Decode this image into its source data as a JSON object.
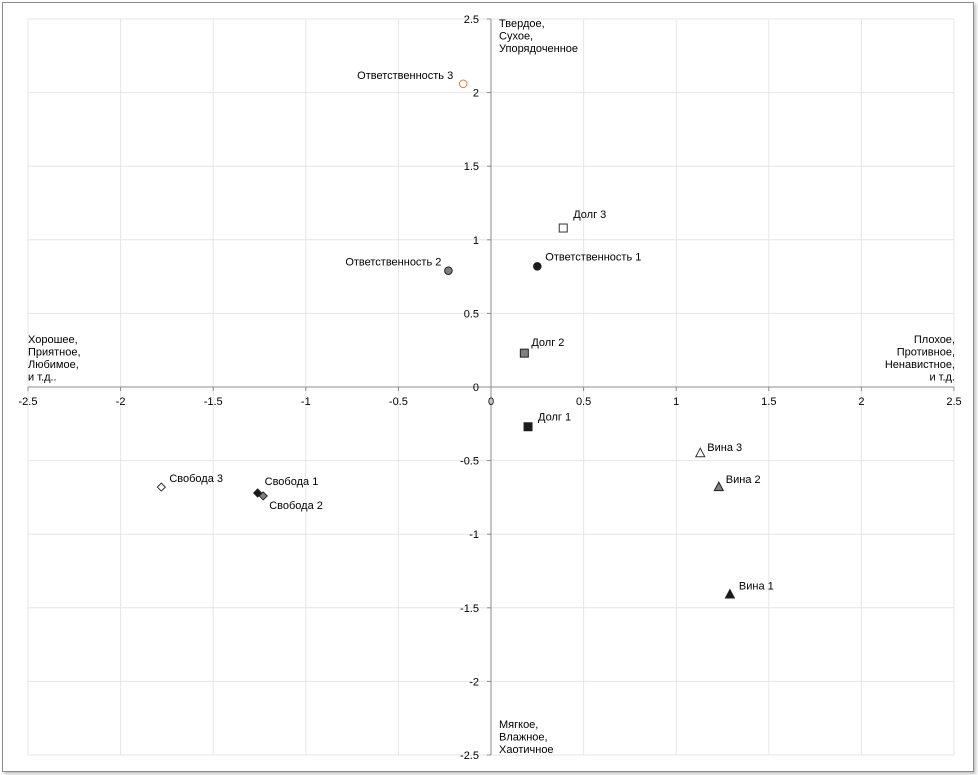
{
  "chart_data": {
    "type": "scatter",
    "xlim": [
      -2.5,
      2.5
    ],
    "ylim": [
      -2.5,
      2.5
    ],
    "x_ticks": [
      -2.5,
      -2,
      -1.5,
      -1,
      -0.5,
      0,
      0.5,
      1,
      1.5,
      2,
      2.5
    ],
    "y_ticks": [
      -2.5,
      -2,
      -1.5,
      -1,
      -0.5,
      0,
      0.5,
      1,
      1.5,
      2,
      2.5
    ],
    "grid": true,
    "points": [
      {
        "label": "Ответственность 3",
        "x": -0.15,
        "y": 2.06,
        "marker": "circle-open",
        "color": "#e07b39"
      },
      {
        "label": "Долг 3",
        "x": 0.39,
        "y": 1.08,
        "marker": "square-open",
        "color": "#333333"
      },
      {
        "label": "Ответственность 2",
        "x": -0.23,
        "y": 0.79,
        "marker": "circle-filled",
        "color": "#7f7f7f"
      },
      {
        "label": "Ответственность 1",
        "x": 0.25,
        "y": 0.82,
        "marker": "circle-filled",
        "color": "#1a1a1a"
      },
      {
        "label": "Долг 2",
        "x": 0.18,
        "y": 0.23,
        "marker": "square-filled",
        "color": "#7f7f7f"
      },
      {
        "label": "Долг 1",
        "x": 0.2,
        "y": -0.27,
        "marker": "square-filled",
        "color": "#1a1a1a"
      },
      {
        "label": "Вина 3",
        "x": 1.13,
        "y": -0.45,
        "marker": "triangle-open",
        "color": "#333333"
      },
      {
        "label": "Вина 2",
        "x": 1.23,
        "y": -0.68,
        "marker": "triangle-filled",
        "color": "#7f7f7f"
      },
      {
        "label": "Вина 1",
        "x": 1.29,
        "y": -1.41,
        "marker": "triangle-filled",
        "color": "#1a1a1a"
      },
      {
        "label": "Свобода 3",
        "x": -1.78,
        "y": -0.68,
        "marker": "diamond-open",
        "color": "#333333"
      },
      {
        "label": "Свобода 1",
        "x": -1.26,
        "y": -0.72,
        "marker": "diamond-filled",
        "color": "#1a1a1a"
      },
      {
        "label": "Свобода 2",
        "x": -1.23,
        "y": -0.74,
        "marker": "diamond-filled",
        "color": "#7f7f7f"
      }
    ],
    "pole_labels": {
      "top": [
        "Твердое,",
        "Сухое,",
        "Упорядоченное"
      ],
      "bottom": [
        "Мягкое,",
        "Влажное,",
        "Хаотичное"
      ],
      "left": [
        "Хорошее,",
        "Приятное,",
        "Любимое,",
        "и т.д.."
      ],
      "right": [
        "Плохое,",
        "Противное,",
        "Ненавистное,",
        "и т.д."
      ]
    }
  }
}
